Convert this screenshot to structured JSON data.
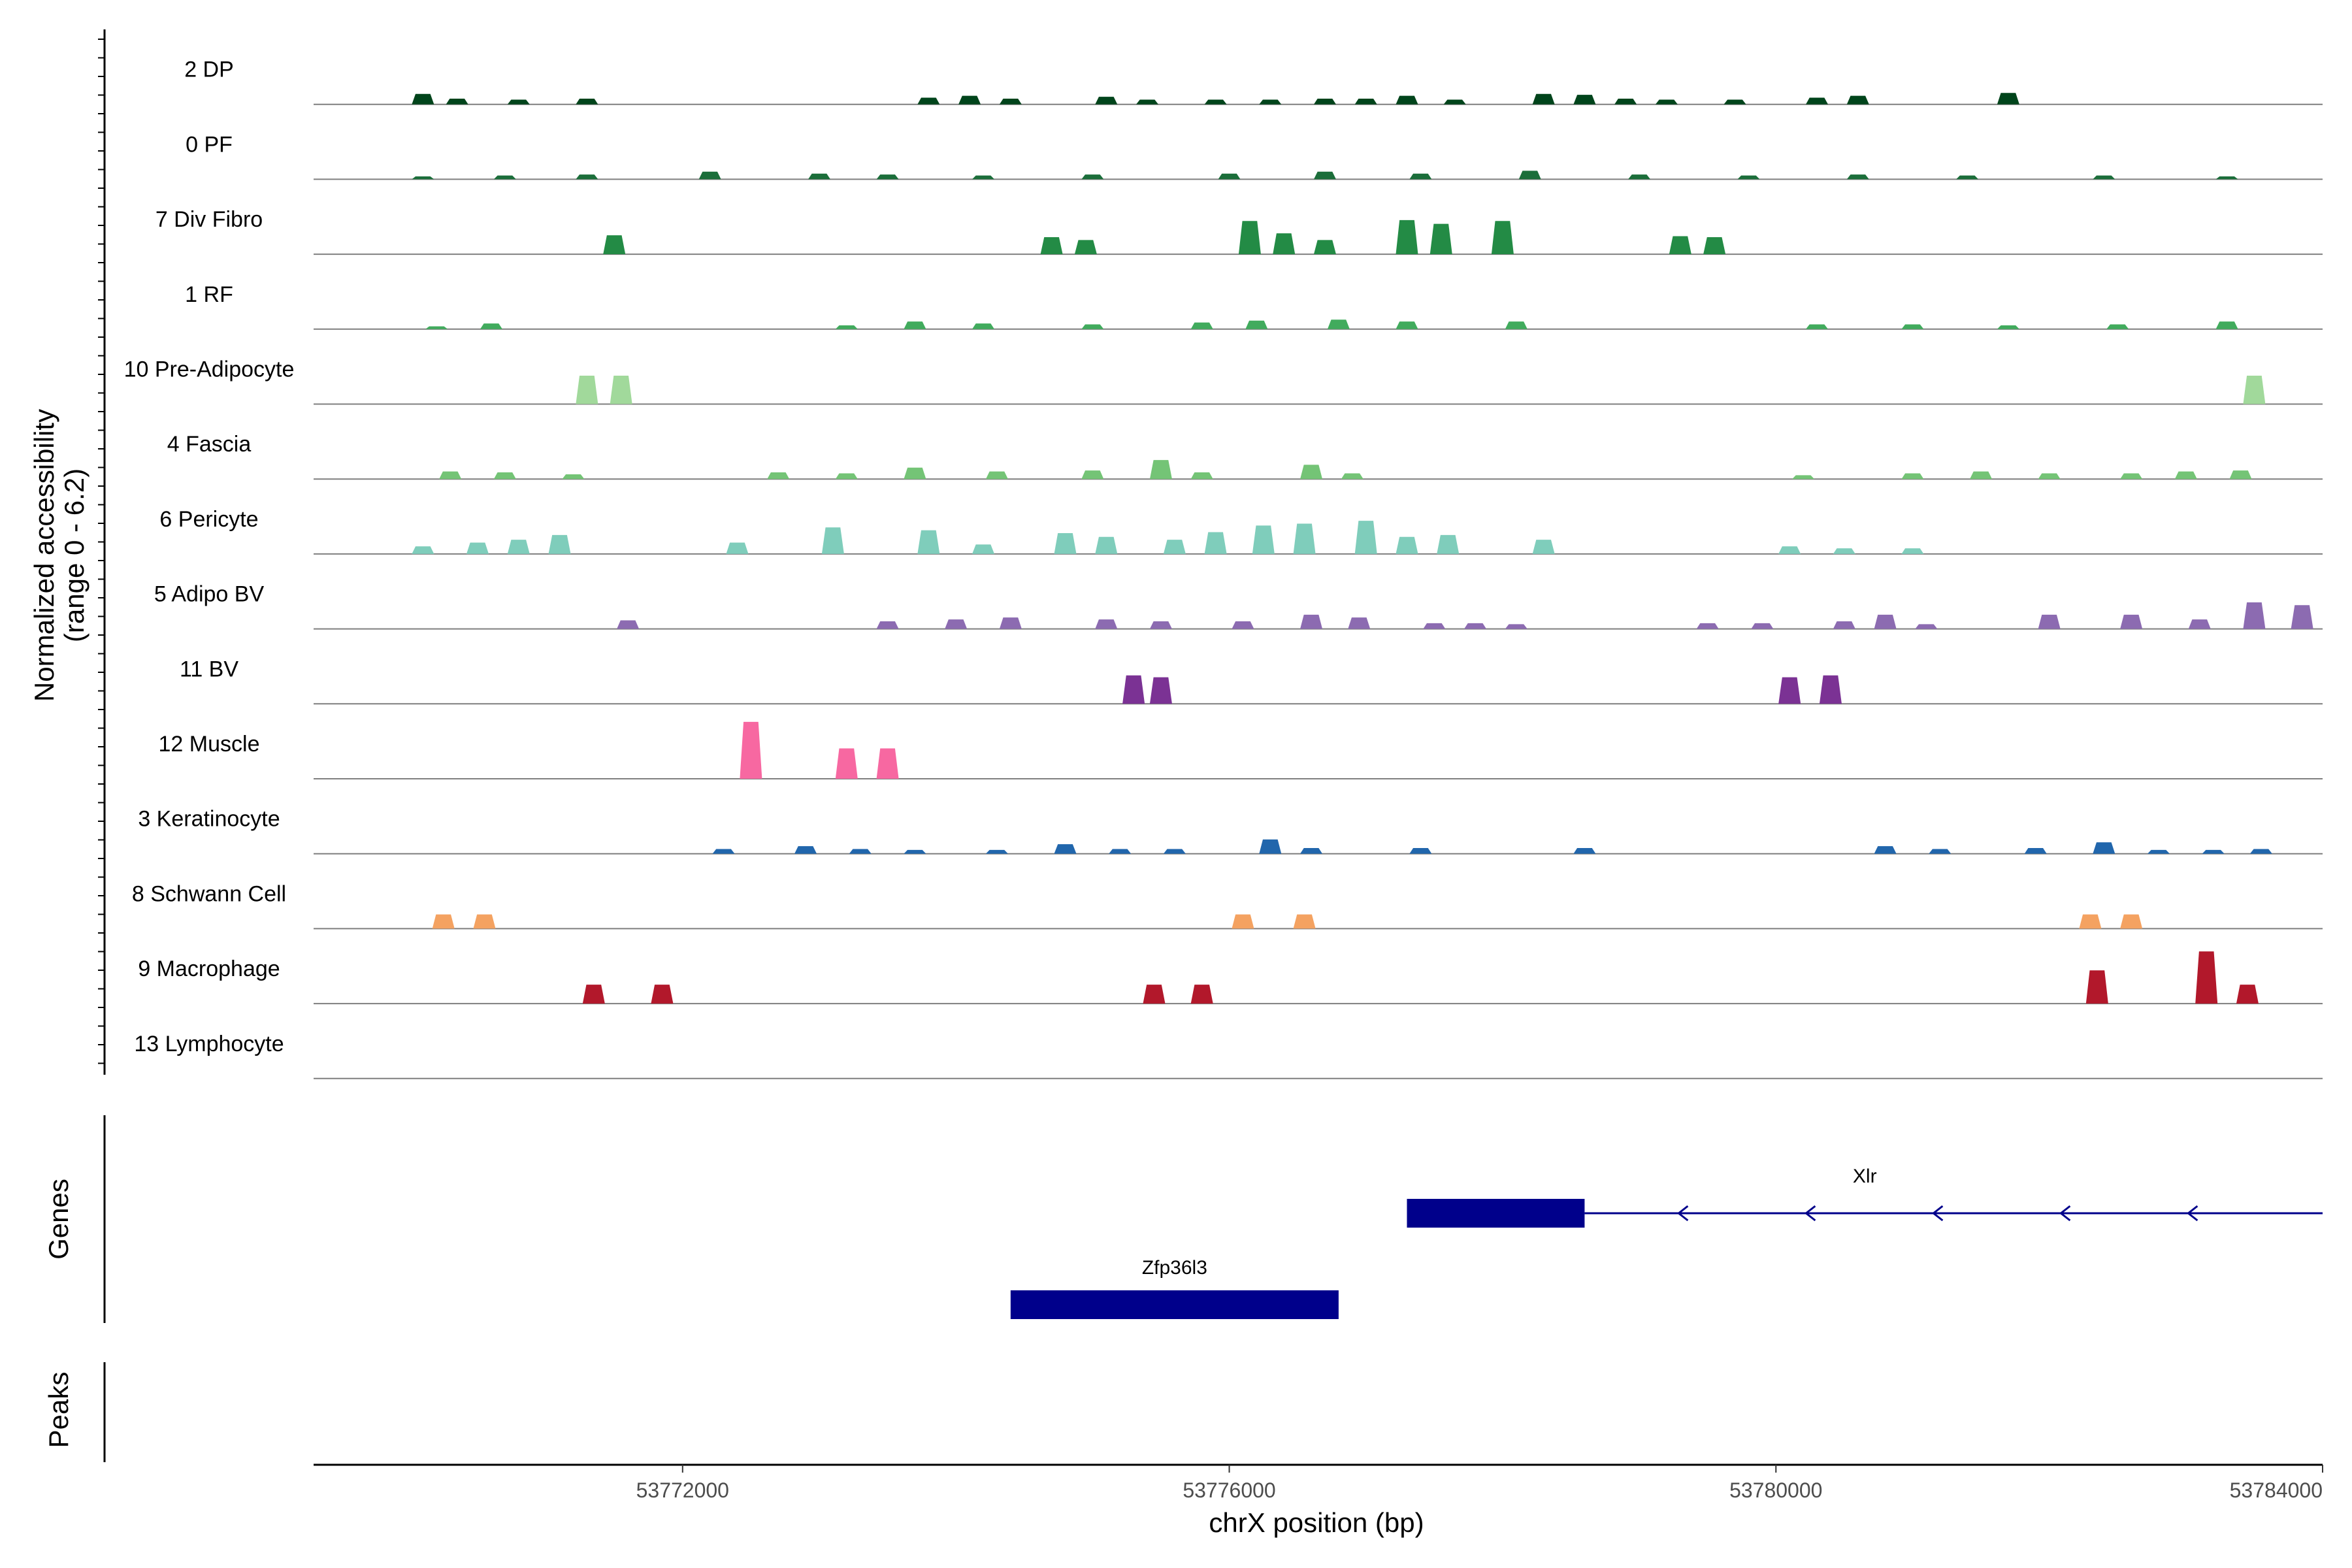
{
  "chart_data": {
    "type": "area",
    "chromosome": "chrX",
    "x_range": [
      53769300,
      53784000
    ],
    "y_range": [
      0,
      6.2
    ],
    "xlabel": "chrX position (bp)",
    "ylabel_line1": "Normalized accessibility",
    "ylabel_line2": "(range 0 - 6.2)",
    "genes_label": "Genes",
    "peaks_label": "Peaks",
    "x_ticks": [
      {
        "value": 53772000,
        "label": "53772000"
      },
      {
        "value": 53776000,
        "label": "53776000"
      },
      {
        "value": 53780000,
        "label": "53780000"
      },
      {
        "value": 53784000,
        "label": "53784000"
      }
    ],
    "tracks": [
      {
        "label": "2 DP",
        "color": "#00441b",
        "peaks": [
          [
            53770100,
            1.1
          ],
          [
            53770350,
            0.6
          ],
          [
            53770800,
            0.5
          ],
          [
            53771300,
            0.6
          ],
          [
            53773800,
            0.7
          ],
          [
            53774100,
            0.9
          ],
          [
            53774400,
            0.6
          ],
          [
            53775100,
            0.8
          ],
          [
            53775400,
            0.5
          ],
          [
            53775900,
            0.5
          ],
          [
            53776300,
            0.5
          ],
          [
            53776700,
            0.6
          ],
          [
            53777000,
            0.6
          ],
          [
            53777300,
            0.9
          ],
          [
            53777650,
            0.5
          ],
          [
            53778300,
            1.1
          ],
          [
            53778600,
            1.0
          ],
          [
            53778900,
            0.6
          ],
          [
            53779200,
            0.5
          ],
          [
            53779700,
            0.5
          ],
          [
            53780300,
            0.7
          ],
          [
            53780600,
            0.9
          ],
          [
            53781700,
            1.2
          ]
        ]
      },
      {
        "label": "0 PF",
        "color": "#1b6e3a",
        "peaks": [
          [
            53770100,
            0.3
          ],
          [
            53770700,
            0.4
          ],
          [
            53771300,
            0.5
          ],
          [
            53772200,
            0.8
          ],
          [
            53773000,
            0.6
          ],
          [
            53773500,
            0.5
          ],
          [
            53774200,
            0.4
          ],
          [
            53775000,
            0.5
          ],
          [
            53776000,
            0.6
          ],
          [
            53776700,
            0.8
          ],
          [
            53777400,
            0.6
          ],
          [
            53778200,
            0.9
          ],
          [
            53779000,
            0.5
          ],
          [
            53779800,
            0.4
          ],
          [
            53780600,
            0.5
          ],
          [
            53781400,
            0.4
          ],
          [
            53782400,
            0.4
          ],
          [
            53783300,
            0.3
          ]
        ]
      },
      {
        "label": "7 Div Fibro",
        "color": "#238b45",
        "peaks": [
          [
            53771500,
            2.0
          ],
          [
            53774700,
            1.8
          ],
          [
            53774950,
            1.5
          ],
          [
            53776150,
            3.5
          ],
          [
            53776400,
            2.2
          ],
          [
            53776700,
            1.5
          ],
          [
            53777300,
            3.6
          ],
          [
            53777550,
            3.2
          ],
          [
            53778000,
            3.5
          ],
          [
            53779300,
            1.9
          ],
          [
            53779550,
            1.8
          ]
        ]
      },
      {
        "label": "1 RF",
        "color": "#41ab5d",
        "peaks": [
          [
            53770200,
            0.3
          ],
          [
            53770600,
            0.6
          ],
          [
            53773200,
            0.4
          ],
          [
            53773700,
            0.8
          ],
          [
            53774200,
            0.6
          ],
          [
            53775000,
            0.5
          ],
          [
            53775800,
            0.7
          ],
          [
            53776200,
            0.9
          ],
          [
            53776800,
            1.0
          ],
          [
            53777300,
            0.8
          ],
          [
            53778100,
            0.8
          ],
          [
            53780300,
            0.5
          ],
          [
            53781000,
            0.5
          ],
          [
            53781700,
            0.4
          ],
          [
            53782500,
            0.5
          ],
          [
            53783300,
            0.8
          ]
        ]
      },
      {
        "label": "10 Pre-Adipocyte",
        "color": "#a1d99b",
        "peaks": [
          [
            53771300,
            3.0
          ],
          [
            53771550,
            3.0
          ],
          [
            53783500,
            3.0
          ]
        ]
      },
      {
        "label": "4 Fascia",
        "color": "#74c476",
        "peaks": [
          [
            53770300,
            0.8
          ],
          [
            53770700,
            0.7
          ],
          [
            53771200,
            0.5
          ],
          [
            53772700,
            0.7
          ],
          [
            53773200,
            0.6
          ],
          [
            53773700,
            1.2
          ],
          [
            53774300,
            0.8
          ],
          [
            53775000,
            0.9
          ],
          [
            53775500,
            2.0
          ],
          [
            53775800,
            0.7
          ],
          [
            53776600,
            1.5
          ],
          [
            53776900,
            0.6
          ],
          [
            53780200,
            0.4
          ],
          [
            53781000,
            0.6
          ],
          [
            53781500,
            0.8
          ],
          [
            53782000,
            0.6
          ],
          [
            53782600,
            0.6
          ],
          [
            53783000,
            0.8
          ],
          [
            53783400,
            0.9
          ]
        ]
      },
      {
        "label": "6 Pericyte",
        "color": "#7fcdbb",
        "peaks": [
          [
            53770100,
            0.8
          ],
          [
            53770500,
            1.2
          ],
          [
            53770800,
            1.5
          ],
          [
            53771100,
            2.0
          ],
          [
            53772400,
            1.2
          ],
          [
            53773100,
            2.8
          ],
          [
            53773800,
            2.5
          ],
          [
            53774200,
            1.0
          ],
          [
            53774800,
            2.2
          ],
          [
            53775100,
            1.8
          ],
          [
            53775600,
            1.5
          ],
          [
            53775900,
            2.3
          ],
          [
            53776250,
            3.0
          ],
          [
            53776550,
            3.2
          ],
          [
            53777000,
            3.5
          ],
          [
            53777300,
            1.8
          ],
          [
            53777600,
            2.0
          ],
          [
            53778300,
            1.5
          ],
          [
            53780100,
            0.8
          ],
          [
            53780500,
            0.6
          ],
          [
            53781000,
            0.6
          ]
        ]
      },
      {
        "label": "5 Adipo BV",
        "color": "#8c6bb1",
        "peaks": [
          [
            53771600,
            0.9
          ],
          [
            53773500,
            0.8
          ],
          [
            53774000,
            1.0
          ],
          [
            53774400,
            1.2
          ],
          [
            53775100,
            1.0
          ],
          [
            53775500,
            0.8
          ],
          [
            53776100,
            0.8
          ],
          [
            53776600,
            1.5
          ],
          [
            53776950,
            1.2
          ],
          [
            53777500,
            0.6
          ],
          [
            53777800,
            0.6
          ],
          [
            53778100,
            0.5
          ],
          [
            53779500,
            0.6
          ],
          [
            53779900,
            0.6
          ],
          [
            53780500,
            0.8
          ],
          [
            53780800,
            1.5
          ],
          [
            53781100,
            0.5
          ],
          [
            53782000,
            1.5
          ],
          [
            53782600,
            1.5
          ],
          [
            53783100,
            1.0
          ],
          [
            53783500,
            2.8
          ],
          [
            53783850,
            2.5
          ]
        ]
      },
      {
        "label": "11 BV",
        "color": "#7b3294",
        "peaks": [
          [
            53775300,
            3.0
          ],
          [
            53775500,
            2.8
          ],
          [
            53780100,
            2.8
          ],
          [
            53780400,
            3.0
          ]
        ]
      },
      {
        "label": "12 Muscle",
        "color": "#f768a1",
        "peaks": [
          [
            53772500,
            6.0
          ],
          [
            53773200,
            3.2
          ],
          [
            53773500,
            3.2
          ]
        ]
      },
      {
        "label": "3 Keratinocyte",
        "color": "#2166ac",
        "peaks": [
          [
            53772300,
            0.5
          ],
          [
            53772900,
            0.8
          ],
          [
            53773300,
            0.5
          ],
          [
            53773700,
            0.4
          ],
          [
            53774300,
            0.4
          ],
          [
            53774800,
            1.0
          ],
          [
            53775200,
            0.5
          ],
          [
            53775600,
            0.5
          ],
          [
            53776300,
            1.5
          ],
          [
            53776600,
            0.6
          ],
          [
            53777400,
            0.6
          ],
          [
            53778600,
            0.6
          ],
          [
            53780800,
            0.8
          ],
          [
            53781200,
            0.5
          ],
          [
            53781900,
            0.6
          ],
          [
            53782400,
            1.2
          ],
          [
            53782800,
            0.4
          ],
          [
            53783200,
            0.4
          ],
          [
            53783550,
            0.5
          ]
        ]
      },
      {
        "label": "8 Schwann Cell",
        "color": "#f4a261",
        "peaks": [
          [
            53770250,
            1.5
          ],
          [
            53770550,
            1.5
          ],
          [
            53776100,
            1.5
          ],
          [
            53776550,
            1.5
          ],
          [
            53782300,
            1.5
          ],
          [
            53782600,
            1.5
          ]
        ]
      },
      {
        "label": "9 Macrophage",
        "color": "#b2182b",
        "peaks": [
          [
            53771350,
            2.0
          ],
          [
            53771850,
            2.0
          ],
          [
            53775450,
            2.0
          ],
          [
            53775800,
            2.0
          ],
          [
            53782350,
            3.5
          ],
          [
            53783150,
            5.5
          ],
          [
            53783450,
            2.0
          ]
        ]
      },
      {
        "label": "13 Lymphocyte",
        "color": "#cccccc",
        "peaks": []
      }
    ],
    "genes": [
      {
        "name": "Xlr",
        "exon": [
          53777300,
          53778600
        ],
        "line": [
          53778600,
          53784000
        ],
        "strand": "-",
        "color": "#00008b",
        "row": 0
      },
      {
        "name": "Zfp36l3",
        "exon": [
          53774400,
          53776800
        ],
        "line": null,
        "strand": "+",
        "color": "#00008b",
        "row": 1
      }
    ]
  }
}
